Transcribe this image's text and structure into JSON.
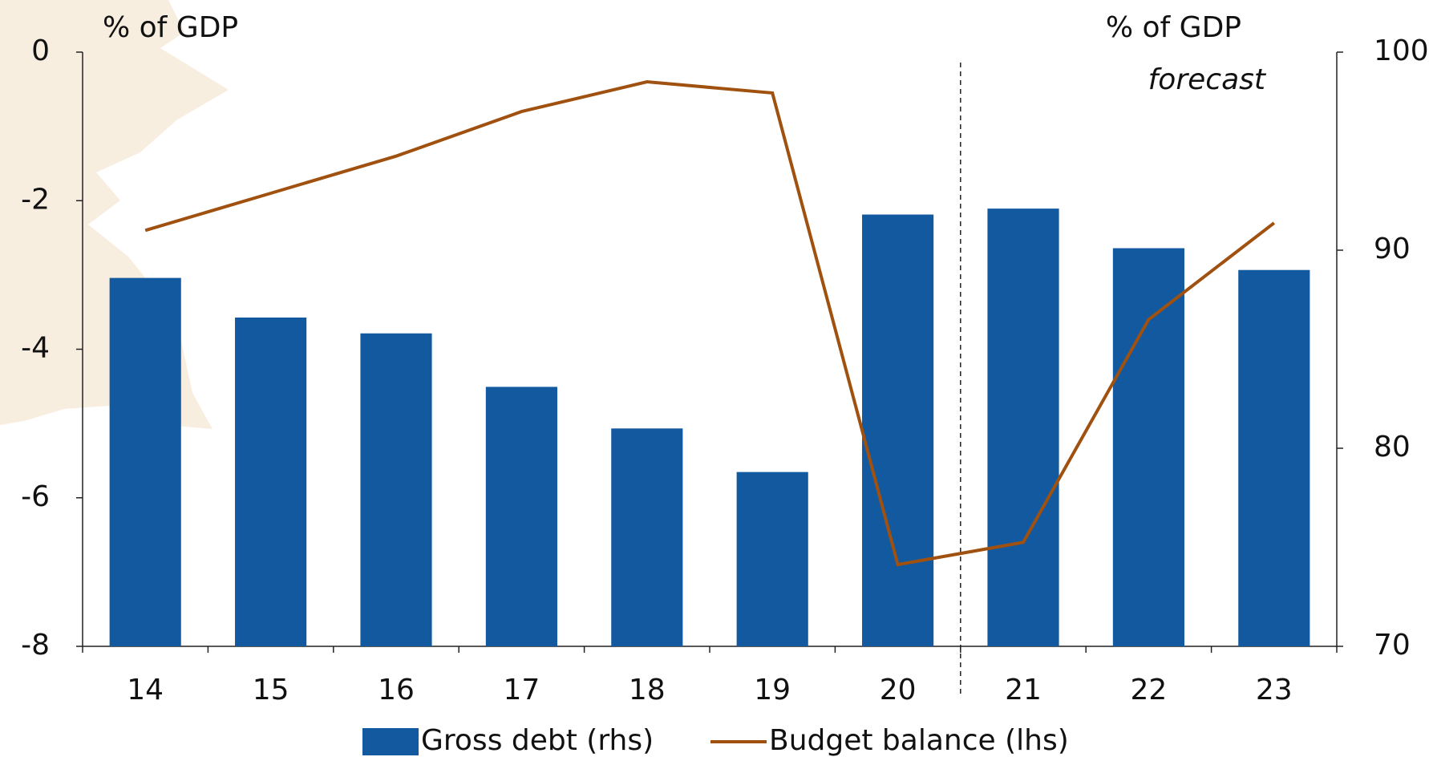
{
  "chart_data": {
    "type": "bar",
    "y_label": "% of GDP",
    "y2_label": "% of GDP",
    "annotation": "forecast",
    "categories": [
      "14",
      "15",
      "16",
      "17",
      "18",
      "19",
      "20",
      "21",
      "22",
      "23"
    ],
    "series": [
      {
        "name": "Gross debt (rhs)",
        "type": "bar",
        "axis": "y2",
        "color": "#1259a0",
        "values": [
          88.6,
          86.6,
          85.8,
          83.1,
          81.0,
          78.8,
          91.8,
          92.1,
          90.1,
          89.0
        ]
      },
      {
        "name": "Budget balance (lhs)",
        "type": "line",
        "axis": "y",
        "color": "#a0510f",
        "values": [
          -2.4,
          -1.9,
          -1.4,
          -0.8,
          -0.4,
          -0.55,
          -6.9,
          -6.6,
          -3.6,
          -2.3
        ]
      }
    ],
    "ylim": [
      -8,
      0
    ],
    "yticks": [
      0,
      -2,
      -4,
      -6,
      -8
    ],
    "y2lim": [
      70,
      100
    ],
    "y2ticks": [
      70,
      80,
      90,
      100
    ]
  }
}
